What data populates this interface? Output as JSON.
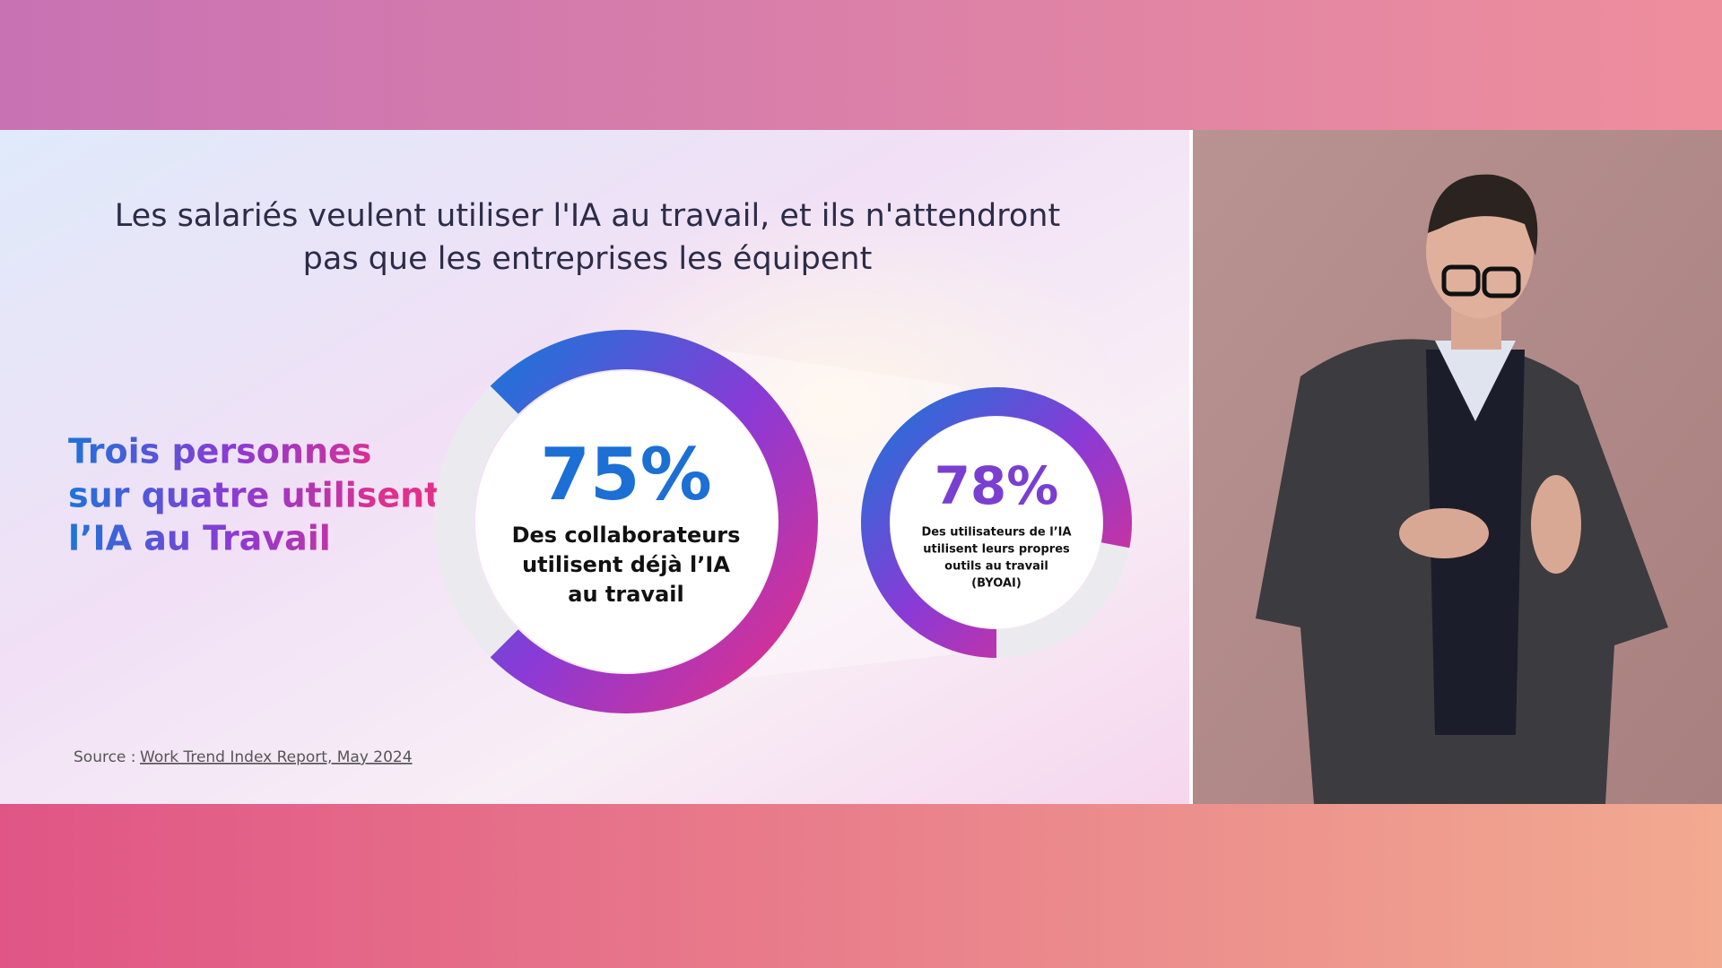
{
  "slide": {
    "title_lines": [
      "Les salariés veulent utiliser l'IA au travail, et ils n'attendront",
      "pas que les entreprises les équipent"
    ],
    "headline_lines": [
      "Trois personnes",
      "sur quatre utilisent",
      "l’IA au Travail"
    ],
    "source_label": "Source :",
    "source_link": "Work Trend Index Report, May 2024"
  },
  "chart_data": [
    {
      "type": "donut",
      "values": [
        75
      ],
      "value_labels": [
        "75%"
      ],
      "value_color": "#1c6fd4",
      "caption_lines": [
        "Des collaborateurs",
        "utilisent déjà l’IA",
        "au travail"
      ],
      "colors": [
        "#1e74d8",
        "#8a3ad6",
        "#e2308a"
      ],
      "track_color": "#ebebef"
    },
    {
      "type": "donut",
      "values": [
        78
      ],
      "value_labels": [
        "78%"
      ],
      "value_color": "#7a3fd0",
      "caption_lines": [
        "Des utilisateurs de l’IA",
        "utilisent leurs propres",
        "outils au travail",
        "(BYOAI)"
      ],
      "colors": [
        "#1e74d8",
        "#8a3ad6",
        "#e2308a"
      ],
      "track_color": "#ebebef"
    }
  ]
}
